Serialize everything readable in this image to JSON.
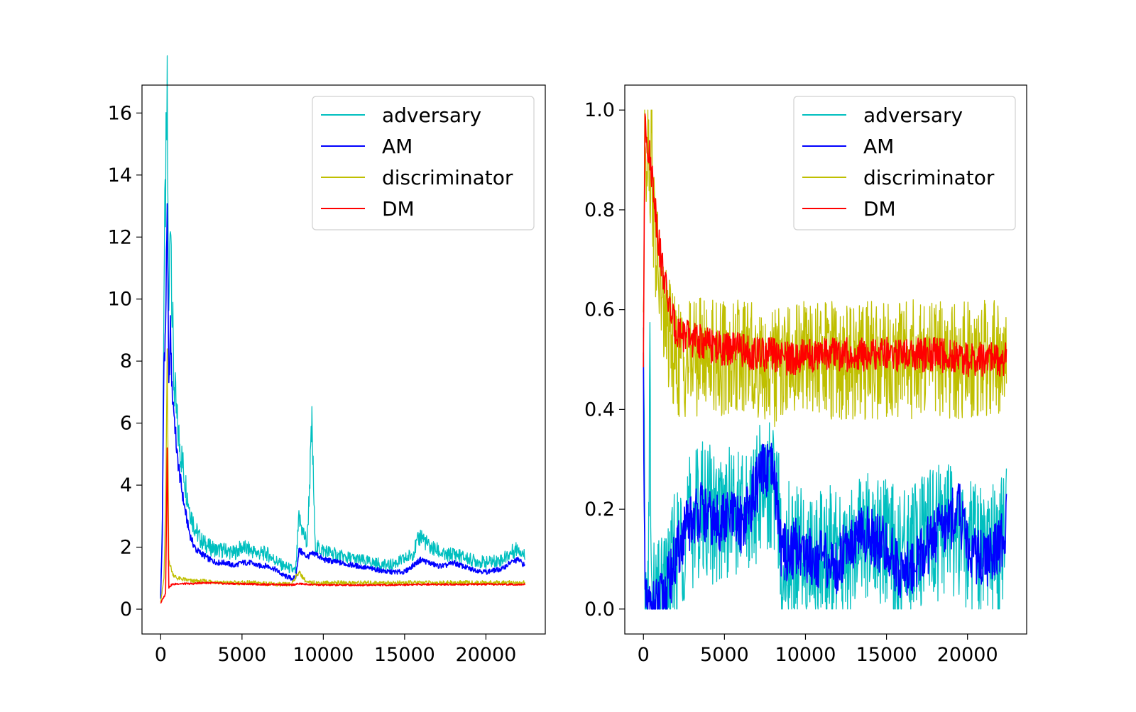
{
  "chart_data": [
    {
      "type": "line",
      "title": "",
      "xlabel": "",
      "ylabel": "",
      "xlim": [
        -1150,
        23650
      ],
      "ylim": [
        -0.8,
        16.9
      ],
      "xticks": [
        0,
        5000,
        10000,
        15000,
        20000
      ],
      "xtick_labels": [
        "0",
        "5000",
        "10000",
        "15000",
        "20000"
      ],
      "yticks": [
        0,
        2,
        4,
        6,
        8,
        10,
        12,
        14,
        16
      ],
      "ytick_labels": [
        "0",
        "2",
        "4",
        "6",
        "8",
        "10",
        "12",
        "14",
        "16"
      ],
      "grid": false,
      "legend": {
        "position": "top-right",
        "entries": [
          "adversary",
          "AM",
          "discriminator",
          "DM"
        ]
      },
      "series": [
        {
          "name": "adversary",
          "color": "#00bfbf",
          "x": [
            0,
            100,
            200,
            300,
            400,
            500,
            600,
            700,
            800,
            1000,
            1200,
            1400,
            1600,
            1800,
            2000,
            2200,
            2500,
            3000,
            3500,
            4000,
            4500,
            5000,
            5500,
            6000,
            6500,
            7000,
            7500,
            8000,
            8300,
            8500,
            9000,
            9300,
            9500,
            10000,
            11000,
            12000,
            13000,
            14000,
            15000,
            15500,
            16000,
            16500,
            17000,
            17500,
            18000,
            19000,
            20000,
            21000,
            21500,
            22000,
            22400
          ],
          "y": [
            0.5,
            3.0,
            10.5,
            13.5,
            16.0,
            9.0,
            13.5,
            10.0,
            7.5,
            6.0,
            5.2,
            4.5,
            3.8,
            3.2,
            2.8,
            2.5,
            2.2,
            2.0,
            1.9,
            1.9,
            1.8,
            2.0,
            1.9,
            1.8,
            1.8,
            1.6,
            1.4,
            1.3,
            1.2,
            2.9,
            2.1,
            5.9,
            2.0,
            1.9,
            1.7,
            1.6,
            1.5,
            1.4,
            1.6,
            1.8,
            2.4,
            2.0,
            1.9,
            1.7,
            1.8,
            1.6,
            1.5,
            1.6,
            1.8,
            2.0,
            1.7
          ]
        },
        {
          "name": "AM",
          "color": "#0000ff",
          "x": [
            0,
            100,
            200,
            300,
            400,
            500,
            600,
            700,
            800,
            1000,
            1200,
            1400,
            1600,
            1800,
            2000,
            2200,
            2500,
            3000,
            3500,
            4000,
            4500,
            5000,
            5500,
            6000,
            6500,
            7000,
            7500,
            8000,
            8300,
            8500,
            9000,
            9500,
            10000,
            11000,
            12000,
            13000,
            14000,
            15000,
            15500,
            16000,
            16500,
            17000,
            17500,
            18000,
            19000,
            20000,
            21000,
            21500,
            22000,
            22400
          ],
          "y": [
            0.4,
            2.5,
            8.0,
            9.0,
            13.2,
            7.0,
            9.0,
            7.0,
            6.5,
            5.0,
            4.2,
            3.5,
            2.9,
            2.4,
            2.1,
            1.9,
            1.8,
            1.6,
            1.5,
            1.5,
            1.4,
            1.5,
            1.5,
            1.4,
            1.4,
            1.3,
            1.1,
            1.0,
            1.0,
            1.9,
            1.7,
            1.8,
            1.6,
            1.5,
            1.4,
            1.3,
            1.2,
            1.2,
            1.4,
            1.6,
            1.5,
            1.4,
            1.4,
            1.5,
            1.3,
            1.2,
            1.3,
            1.5,
            1.6,
            1.4
          ]
        },
        {
          "name": "discriminator",
          "color": "#bfbf00",
          "x": [
            0,
            100,
            200,
            300,
            400,
            500,
            600,
            700,
            800,
            1000,
            1500,
            2000,
            2500,
            3000,
            4000,
            5000,
            6000,
            7000,
            8000,
            8500,
            9000,
            10000,
            12000,
            14000,
            16000,
            18000,
            20000,
            22000,
            22400
          ],
          "y": [
            0.3,
            0.6,
            1.0,
            3.2,
            8.0,
            1.6,
            1.4,
            1.2,
            1.1,
            1.0,
            0.95,
            0.9,
            0.9,
            0.9,
            0.85,
            0.85,
            0.85,
            0.8,
            0.8,
            1.2,
            0.85,
            0.85,
            0.85,
            0.85,
            0.85,
            0.85,
            0.85,
            0.85,
            0.85
          ]
        },
        {
          "name": "DM",
          "color": "#ff0000",
          "x": [
            0,
            100,
            200,
            300,
            400,
            500,
            600,
            700,
            800,
            1000,
            1500,
            2000,
            2500,
            3000,
            4000,
            5000,
            6000,
            7000,
            8000,
            8500,
            9000,
            10000,
            12000,
            14000,
            16000,
            18000,
            20000,
            22000,
            22400
          ],
          "y": [
            0.2,
            0.3,
            0.4,
            0.5,
            5.2,
            0.7,
            0.75,
            0.8,
            0.8,
            0.82,
            0.82,
            0.82,
            0.85,
            0.85,
            0.82,
            0.82,
            0.8,
            0.8,
            0.78,
            0.82,
            0.8,
            0.78,
            0.78,
            0.78,
            0.8,
            0.8,
            0.8,
            0.8,
            0.8
          ]
        }
      ]
    },
    {
      "type": "line",
      "title": "",
      "xlabel": "",
      "ylabel": "",
      "xlim": [
        -1150,
        23650
      ],
      "ylim": [
        -0.05,
        1.05
      ],
      "xticks": [
        0,
        5000,
        10000,
        15000,
        20000
      ],
      "xtick_labels": [
        "0",
        "5000",
        "10000",
        "15000",
        "20000"
      ],
      "yticks": [
        0.0,
        0.2,
        0.4,
        0.6,
        0.8,
        1.0
      ],
      "ytick_labels": [
        "0.0",
        "0.2",
        "0.4",
        "0.6",
        "0.8",
        "1.0"
      ],
      "grid": false,
      "legend": {
        "position": "top-right",
        "entries": [
          "adversary",
          "AM",
          "discriminator",
          "DM"
        ]
      },
      "series": [
        {
          "name": "adversary",
          "color": "#00bfbf",
          "x": [
            0,
            100,
            200,
            300,
            400,
            500,
            700,
            1000,
            1300,
            1500,
            1800,
            2000,
            2500,
            3000,
            3500,
            4000,
            4500,
            5000,
            5500,
            6000,
            6500,
            7000,
            7500,
            8000,
            8300,
            8500,
            9000,
            10000,
            11000,
            12000,
            13000,
            14000,
            15000,
            16000,
            17000,
            18000,
            19000,
            20000,
            21000,
            22000,
            22400
          ],
          "y": [
            0.5,
            0.0,
            0.0,
            0.0,
            0.5,
            0.0,
            0.0,
            0.0,
            0.02,
            0.05,
            0.08,
            0.1,
            0.15,
            0.18,
            0.2,
            0.2,
            0.18,
            0.2,
            0.2,
            0.18,
            0.2,
            0.22,
            0.25,
            0.25,
            0.2,
            0.1,
            0.12,
            0.1,
            0.12,
            0.1,
            0.12,
            0.15,
            0.12,
            0.1,
            0.12,
            0.15,
            0.15,
            0.12,
            0.1,
            0.12,
            0.15
          ]
        },
        {
          "name": "AM",
          "color": "#0000ff",
          "x": [
            0,
            100,
            200,
            300,
            500,
            700,
            1000,
            1300,
            1500,
            1800,
            2000,
            2500,
            3000,
            3500,
            4000,
            4500,
            5000,
            5500,
            6000,
            6500,
            7000,
            7500,
            8000,
            8300,
            8500,
            9000,
            9500,
            10000,
            11000,
            12000,
            12500,
            13000,
            14000,
            15000,
            16000,
            17000,
            18000,
            19000,
            19500,
            20000,
            21000,
            22000,
            22400
          ],
          "y": [
            0.48,
            0.0,
            0.0,
            0.0,
            0.0,
            0.0,
            0.01,
            0.03,
            0.05,
            0.08,
            0.1,
            0.15,
            0.18,
            0.2,
            0.18,
            0.17,
            0.18,
            0.18,
            0.17,
            0.2,
            0.25,
            0.28,
            0.27,
            0.2,
            0.12,
            0.11,
            0.13,
            0.11,
            0.1,
            0.08,
            0.14,
            0.14,
            0.15,
            0.12,
            0.07,
            0.1,
            0.15,
            0.18,
            0.2,
            0.12,
            0.1,
            0.12,
            0.18
          ]
        },
        {
          "name": "discriminator",
          "color": "#bfbf00",
          "x": [
            0,
            100,
            200,
            300,
            400,
            500,
            600,
            700,
            800,
            1000,
            1200,
            1500,
            1800,
            2000,
            2500,
            3000,
            4000,
            5000,
            6000,
            7000,
            8000,
            9000,
            10000,
            12000,
            14000,
            16000,
            18000,
            20000,
            22000,
            22400
          ],
          "y": [
            0.6,
            1.0,
            0.9,
            1.0,
            0.85,
            0.95,
            0.8,
            0.75,
            0.7,
            0.65,
            0.6,
            0.55,
            0.52,
            0.5,
            0.5,
            0.5,
            0.52,
            0.5,
            0.5,
            0.5,
            0.48,
            0.5,
            0.5,
            0.5,
            0.5,
            0.5,
            0.5,
            0.5,
            0.5,
            0.5
          ]
        },
        {
          "name": "DM",
          "color": "#ff0000",
          "x": [
            0,
            100,
            200,
            300,
            400,
            500,
            600,
            700,
            800,
            1000,
            1200,
            1500,
            1800,
            2000,
            2500,
            3000,
            4000,
            5000,
            6000,
            7000,
            8000,
            9000,
            10000,
            12000,
            14000,
            16000,
            18000,
            20000,
            22000,
            22400
          ],
          "y": [
            0.5,
            1.0,
            0.95,
            0.92,
            0.9,
            0.88,
            0.85,
            0.82,
            0.78,
            0.72,
            0.68,
            0.62,
            0.58,
            0.56,
            0.55,
            0.54,
            0.53,
            0.52,
            0.52,
            0.51,
            0.51,
            0.5,
            0.51,
            0.51,
            0.51,
            0.51,
            0.51,
            0.5,
            0.5,
            0.5
          ]
        }
      ]
    }
  ]
}
